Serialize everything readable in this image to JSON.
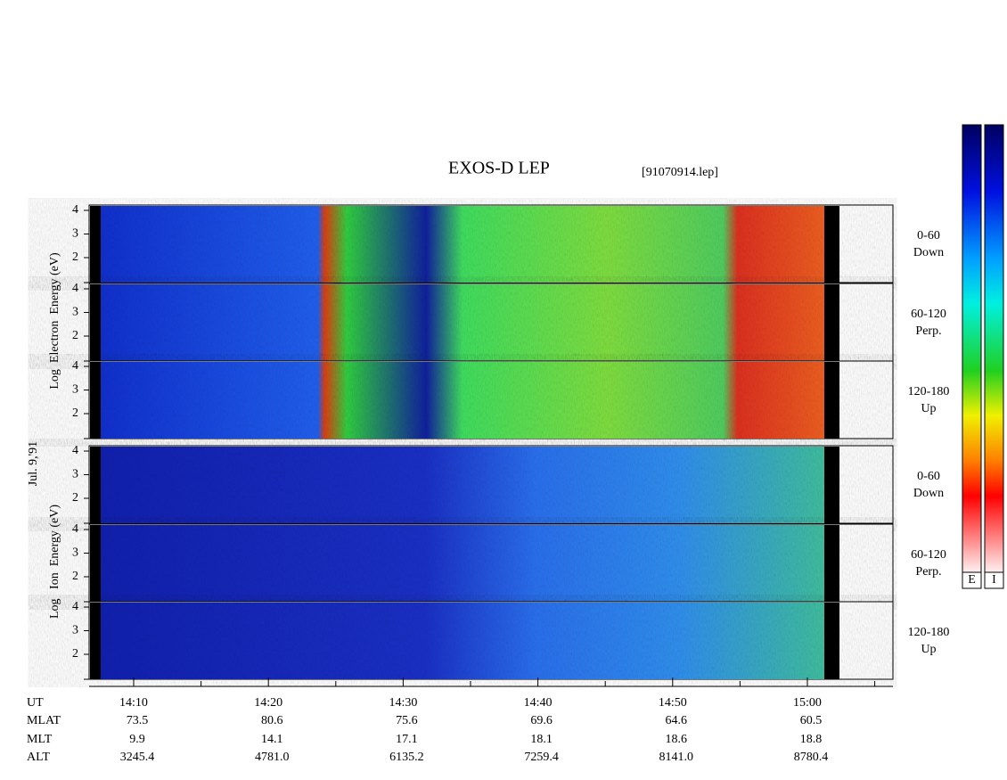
{
  "header": {
    "title": "EXOS-D LEP",
    "file": "[91070914.lep]"
  },
  "date": "Jul. 9,'91",
  "electron_axis_label": "Log  Electron  Energy (eV)",
  "ion_axis_label": "Log   Ion  Energy (eV)",
  "panels": [
    {
      "ticks": [
        "4",
        "3",
        "2"
      ],
      "angle": "0-60",
      "direction": "Down"
    },
    {
      "ticks": [
        "4",
        "3",
        "2"
      ],
      "angle": "60-120",
      "direction": "Perp."
    },
    {
      "ticks": [
        "4",
        "3",
        "2"
      ],
      "angle": "120-180",
      "direction": "Up"
    },
    {
      "ticks": [
        "4",
        "3",
        "2"
      ],
      "angle": "0-60",
      "direction": "Down"
    },
    {
      "ticks": [
        "4",
        "3",
        "2"
      ],
      "angle": "60-120",
      "direction": "Perp."
    },
    {
      "ticks": [
        "4",
        "3",
        "2"
      ],
      "angle": "120-180",
      "direction": "Up"
    }
  ],
  "colorbar_labels": [
    "E",
    "I"
  ],
  "table": {
    "row_labels": [
      "UT",
      "MLAT",
      "MLT",
      "ALT"
    ],
    "columns": [
      [
        "14:10",
        "73.5",
        "9.9",
        "3245.4"
      ],
      [
        "14:20",
        "80.6",
        "14.1",
        "4781.0"
      ],
      [
        "14:30",
        "75.6",
        "17.1",
        "6135.2"
      ],
      [
        "14:40",
        "69.6",
        "18.1",
        "7259.4"
      ],
      [
        "14:50",
        "64.6",
        "18.6",
        "8141.0"
      ],
      [
        "15:00",
        "60.5",
        "18.8",
        "8780.4"
      ]
    ]
  }
}
